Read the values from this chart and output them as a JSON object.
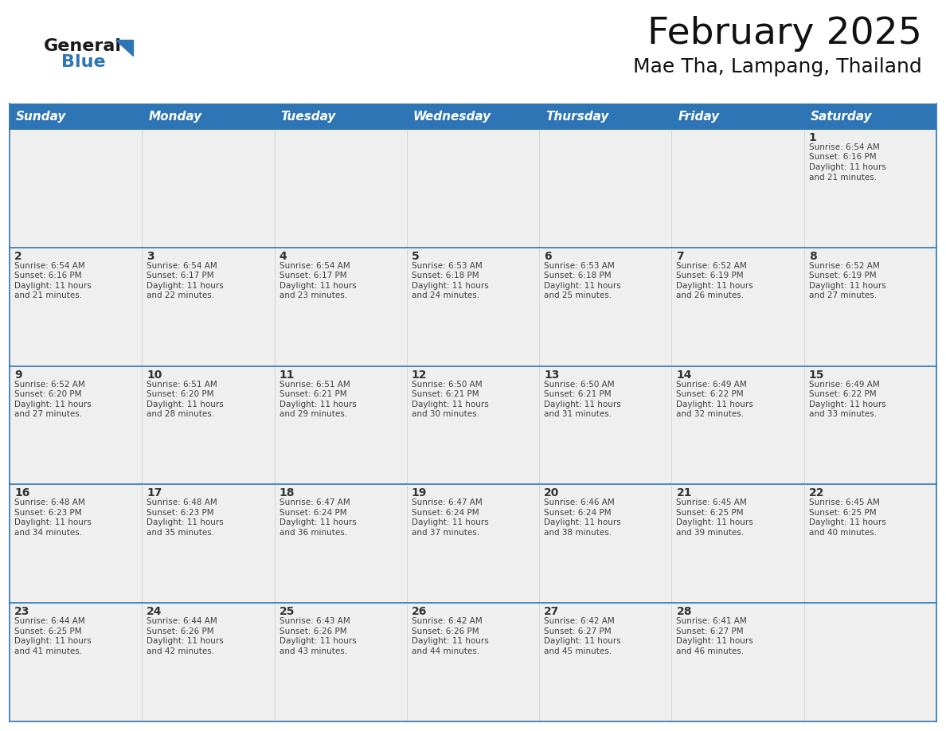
{
  "title": "February 2025",
  "subtitle": "Mae Tha, Lampang, Thailand",
  "header_bg_color": "#2E75B6",
  "header_text_color": "#FFFFFF",
  "cell_bg_color": "#EFEFEF",
  "cell_border_color": "#2E75B6",
  "day_number_color": "#333333",
  "text_color": "#404040",
  "days_of_week": [
    "Sunday",
    "Monday",
    "Tuesday",
    "Wednesday",
    "Thursday",
    "Friday",
    "Saturday"
  ],
  "weeks": [
    [
      {
        "day": null,
        "sunrise": null,
        "sunset": null,
        "daylight": null
      },
      {
        "day": null,
        "sunrise": null,
        "sunset": null,
        "daylight": null
      },
      {
        "day": null,
        "sunrise": null,
        "sunset": null,
        "daylight": null
      },
      {
        "day": null,
        "sunrise": null,
        "sunset": null,
        "daylight": null
      },
      {
        "day": null,
        "sunrise": null,
        "sunset": null,
        "daylight": null
      },
      {
        "day": null,
        "sunrise": null,
        "sunset": null,
        "daylight": null
      },
      {
        "day": 1,
        "sunrise": "6:54 AM",
        "sunset": "6:16 PM",
        "daylight": "11 hours and 21 minutes."
      }
    ],
    [
      {
        "day": 2,
        "sunrise": "6:54 AM",
        "sunset": "6:16 PM",
        "daylight": "11 hours and 21 minutes."
      },
      {
        "day": 3,
        "sunrise": "6:54 AM",
        "sunset": "6:17 PM",
        "daylight": "11 hours and 22 minutes."
      },
      {
        "day": 4,
        "sunrise": "6:54 AM",
        "sunset": "6:17 PM",
        "daylight": "11 hours and 23 minutes."
      },
      {
        "day": 5,
        "sunrise": "6:53 AM",
        "sunset": "6:18 PM",
        "daylight": "11 hours and 24 minutes."
      },
      {
        "day": 6,
        "sunrise": "6:53 AM",
        "sunset": "6:18 PM",
        "daylight": "11 hours and 25 minutes."
      },
      {
        "day": 7,
        "sunrise": "6:52 AM",
        "sunset": "6:19 PM",
        "daylight": "11 hours and 26 minutes."
      },
      {
        "day": 8,
        "sunrise": "6:52 AM",
        "sunset": "6:19 PM",
        "daylight": "11 hours and 27 minutes."
      }
    ],
    [
      {
        "day": 9,
        "sunrise": "6:52 AM",
        "sunset": "6:20 PM",
        "daylight": "11 hours and 27 minutes."
      },
      {
        "day": 10,
        "sunrise": "6:51 AM",
        "sunset": "6:20 PM",
        "daylight": "11 hours and 28 minutes."
      },
      {
        "day": 11,
        "sunrise": "6:51 AM",
        "sunset": "6:21 PM",
        "daylight": "11 hours and 29 minutes."
      },
      {
        "day": 12,
        "sunrise": "6:50 AM",
        "sunset": "6:21 PM",
        "daylight": "11 hours and 30 minutes."
      },
      {
        "day": 13,
        "sunrise": "6:50 AM",
        "sunset": "6:21 PM",
        "daylight": "11 hours and 31 minutes."
      },
      {
        "day": 14,
        "sunrise": "6:49 AM",
        "sunset": "6:22 PM",
        "daylight": "11 hours and 32 minutes."
      },
      {
        "day": 15,
        "sunrise": "6:49 AM",
        "sunset": "6:22 PM",
        "daylight": "11 hours and 33 minutes."
      }
    ],
    [
      {
        "day": 16,
        "sunrise": "6:48 AM",
        "sunset": "6:23 PM",
        "daylight": "11 hours and 34 minutes."
      },
      {
        "day": 17,
        "sunrise": "6:48 AM",
        "sunset": "6:23 PM",
        "daylight": "11 hours and 35 minutes."
      },
      {
        "day": 18,
        "sunrise": "6:47 AM",
        "sunset": "6:24 PM",
        "daylight": "11 hours and 36 minutes."
      },
      {
        "day": 19,
        "sunrise": "6:47 AM",
        "sunset": "6:24 PM",
        "daylight": "11 hours and 37 minutes."
      },
      {
        "day": 20,
        "sunrise": "6:46 AM",
        "sunset": "6:24 PM",
        "daylight": "11 hours and 38 minutes."
      },
      {
        "day": 21,
        "sunrise": "6:45 AM",
        "sunset": "6:25 PM",
        "daylight": "11 hours and 39 minutes."
      },
      {
        "day": 22,
        "sunrise": "6:45 AM",
        "sunset": "6:25 PM",
        "daylight": "11 hours and 40 minutes."
      }
    ],
    [
      {
        "day": 23,
        "sunrise": "6:44 AM",
        "sunset": "6:25 PM",
        "daylight": "11 hours and 41 minutes."
      },
      {
        "day": 24,
        "sunrise": "6:44 AM",
        "sunset": "6:26 PM",
        "daylight": "11 hours and 42 minutes."
      },
      {
        "day": 25,
        "sunrise": "6:43 AM",
        "sunset": "6:26 PM",
        "daylight": "11 hours and 43 minutes."
      },
      {
        "day": 26,
        "sunrise": "6:42 AM",
        "sunset": "6:26 PM",
        "daylight": "11 hours and 44 minutes."
      },
      {
        "day": 27,
        "sunrise": "6:42 AM",
        "sunset": "6:27 PM",
        "daylight": "11 hours and 45 minutes."
      },
      {
        "day": 28,
        "sunrise": "6:41 AM",
        "sunset": "6:27 PM",
        "daylight": "11 hours and 46 minutes."
      },
      {
        "day": null,
        "sunrise": null,
        "sunset": null,
        "daylight": null
      }
    ]
  ],
  "logo_text1": "General",
  "logo_text2": "Blue",
  "logo_color1": "#1a1a1a",
  "logo_color2": "#2E75B6",
  "logo_triangle_color": "#2E75B6",
  "title_fontsize": 34,
  "subtitle_fontsize": 18,
  "header_fontsize": 11,
  "day_number_fontsize": 10,
  "cell_text_fontsize": 7.5,
  "background_color": "#FFFFFF",
  "fig_width": 11.88,
  "fig_height": 9.18,
  "fig_dpi": 100
}
